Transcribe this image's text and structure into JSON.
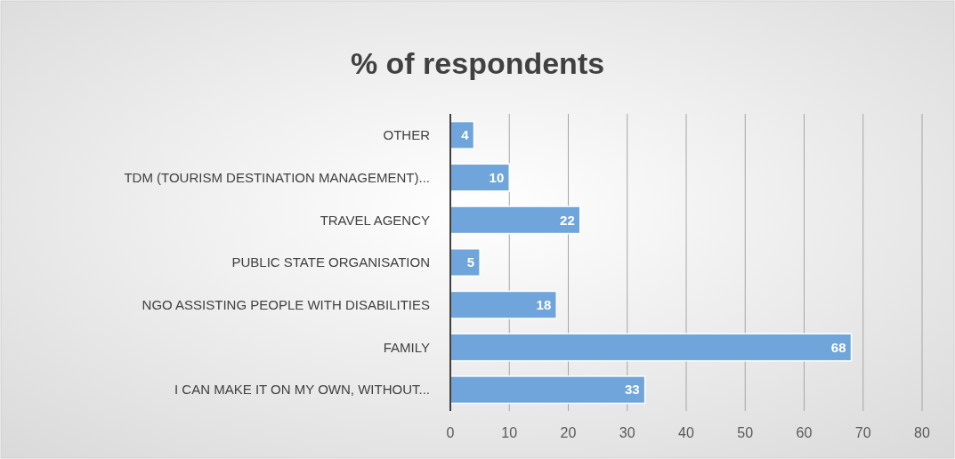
{
  "chart_data": {
    "type": "bar",
    "orientation": "horizontal",
    "title": "% of respondents",
    "categories": [
      "OTHER",
      "TDM (TOURISM DESTINATION MANAGEMENT)...",
      "TRAVEL AGENCY",
      "PUBLIC STATE ORGANISATION",
      "NGO ASSISTING PEOPLE WITH DISABILITIES",
      "FAMILY",
      "I CAN MAKE IT ON MY OWN, WITHOUT..."
    ],
    "values": [
      4,
      10,
      22,
      5,
      18,
      68,
      33
    ],
    "color": "#6fa5db",
    "xlim": [
      0,
      80
    ],
    "xticks": [
      0,
      10,
      20,
      30,
      40,
      50,
      60,
      70,
      80
    ],
    "grid": "x",
    "data_labels": true
  }
}
